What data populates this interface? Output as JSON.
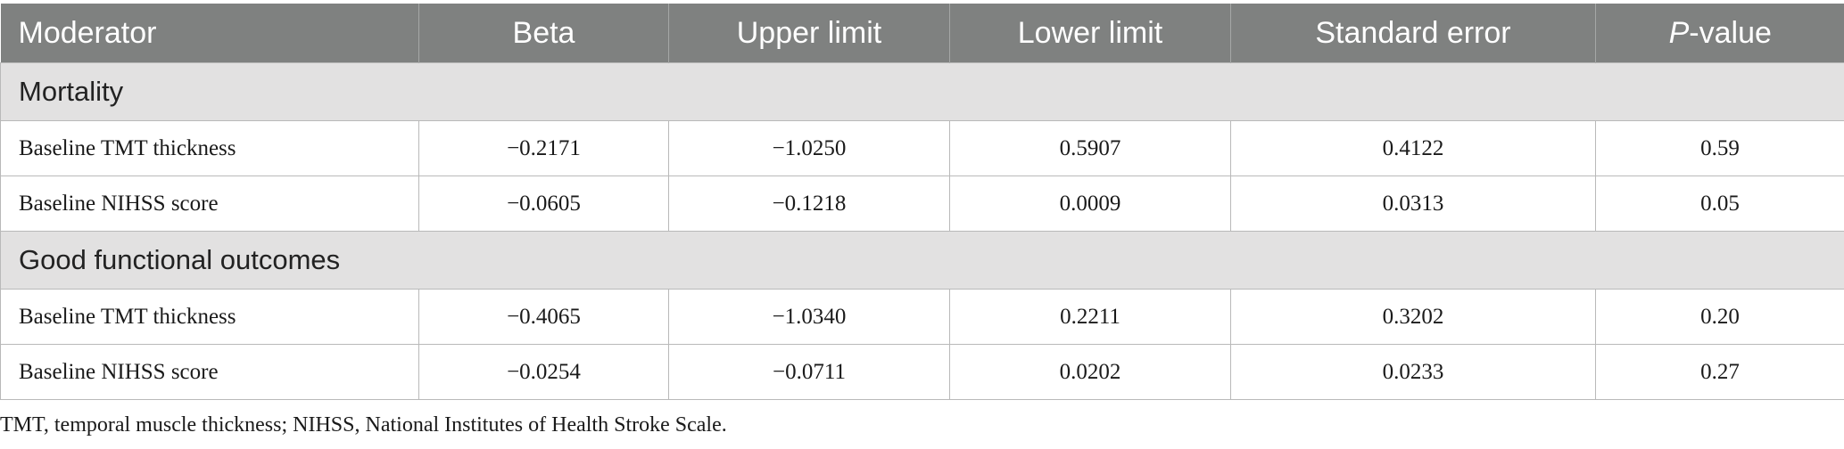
{
  "table": {
    "headers": {
      "moderator": "Moderator",
      "beta": "Beta",
      "upper_limit": "Upper limit",
      "lower_limit": "Lower limit",
      "standard_error": "Standard error",
      "p_prefix": "P",
      "p_suffix": "-value"
    },
    "groups": [
      {
        "title": "Mortality",
        "rows": [
          {
            "moderator": "Baseline TMT thickness",
            "beta": "−0.2171",
            "upper_limit": "−1.0250",
            "lower_limit": "0.5907",
            "standard_error": "0.4122",
            "p_value": "0.59"
          },
          {
            "moderator": "Baseline NIHSS score",
            "beta": "−0.0605",
            "upper_limit": "−0.1218",
            "lower_limit": "0.0009",
            "standard_error": "0.0313",
            "p_value": "0.05"
          }
        ]
      },
      {
        "title": "Good functional outcomes",
        "rows": [
          {
            "moderator": "Baseline TMT thickness",
            "beta": "−0.4065",
            "upper_limit": "−1.0340",
            "lower_limit": "0.2211",
            "standard_error": "0.3202",
            "p_value": "0.20"
          },
          {
            "moderator": "Baseline NIHSS score",
            "beta": "−0.0254",
            "upper_limit": "−0.0711",
            "lower_limit": "0.0202",
            "standard_error": "0.0233",
            "p_value": "0.27"
          }
        ]
      }
    ]
  },
  "footnote": "TMT, temporal muscle thickness; NIHSS, National Institutes of Health Stroke Scale.",
  "colors": {
    "header_bg": "#7f8180",
    "header_text": "#ffffff",
    "group_bg": "#e2e1e1",
    "border": "#b9b9b9"
  }
}
